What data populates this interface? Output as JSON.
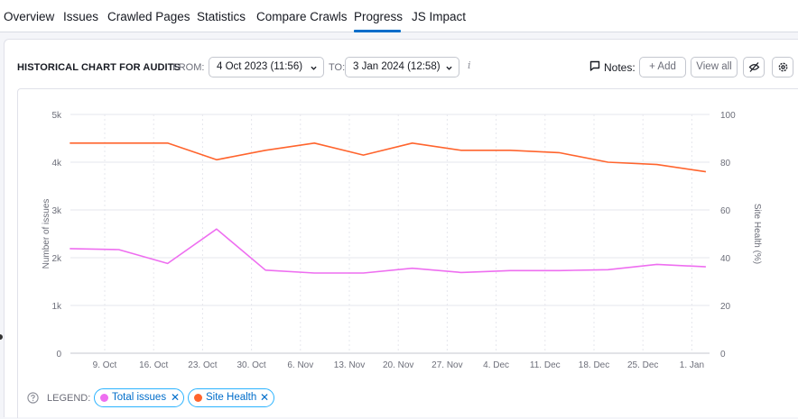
{
  "nav": {
    "tabs": [
      {
        "label": "Overview"
      },
      {
        "label": "Issues"
      },
      {
        "label": "Crawled Pages"
      },
      {
        "label": "Statistics"
      },
      {
        "label": "Compare Crawls"
      },
      {
        "label": "Progress",
        "active": true
      },
      {
        "label": "JS Impact"
      }
    ]
  },
  "header": {
    "title": "HISTORICAL CHART FOR AUDITS",
    "from_label": "FROM:",
    "from_value": "4 Oct 2023 (11:56)",
    "to_label": "TO:",
    "to_value": "3 Jan 2024 (12:58)",
    "info_glyph": "i",
    "notes_label": "Notes:",
    "add_label": "+ Add",
    "view_all_label": "View all"
  },
  "legend": {
    "label": "LEGEND:",
    "items": [
      {
        "name": "Total issues",
        "color": "#ee6ef0",
        "close": "✕"
      },
      {
        "name": "Site Health",
        "color": "#ff642d",
        "close": "✕"
      }
    ]
  },
  "chart_data": {
    "type": "line",
    "x_tick_labels": [
      "9. Oct",
      "16. Oct",
      "23. Oct",
      "30. Oct",
      "6. Nov",
      "13. Nov",
      "20. Nov",
      "27. Nov",
      "4. Dec",
      "11. Dec",
      "18. Dec",
      "25. Dec",
      "1. Jan"
    ],
    "x": [
      "4 Oct",
      "11 Oct",
      "18 Oct",
      "25 Oct",
      "1 Nov",
      "8 Nov",
      "15 Nov",
      "22 Nov",
      "29 Nov",
      "6 Dec",
      "13 Dec",
      "20 Dec",
      "27 Dec",
      "3 Jan"
    ],
    "y_left": {
      "label": "Number of issues",
      "range": [
        0,
        5000
      ],
      "ticks": [
        "0",
        "1k",
        "2k",
        "3k",
        "4k",
        "5k"
      ]
    },
    "y_right": {
      "label": "Site Health (%)",
      "range": [
        0,
        100
      ],
      "ticks": [
        "0",
        "20",
        "40",
        "60",
        "80",
        "100"
      ]
    },
    "series": [
      {
        "name": "Total issues",
        "axis": "left",
        "color": "#ee6ef0",
        "values": [
          2190,
          2170,
          1880,
          2600,
          1740,
          1680,
          1680,
          1780,
          1690,
          1730,
          1730,
          1750,
          1860,
          1810
        ]
      },
      {
        "name": "Site Health",
        "axis": "right",
        "color": "#ff642d",
        "values": [
          88,
          88,
          88,
          81,
          85,
          88,
          83,
          88,
          85,
          85,
          84,
          80,
          79,
          76
        ]
      }
    ],
    "grid": true
  }
}
